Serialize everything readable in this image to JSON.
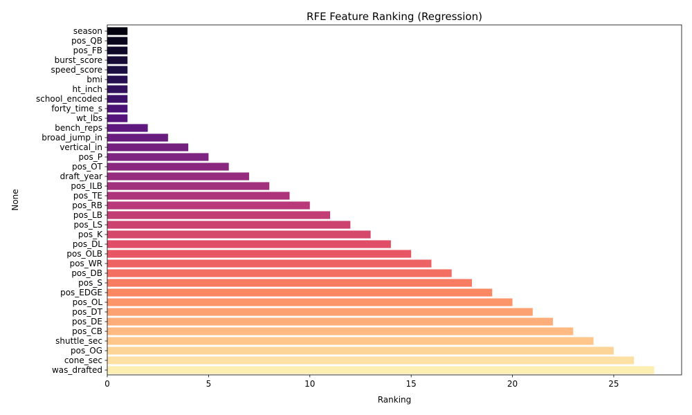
{
  "chart_data": {
    "type": "bar",
    "orientation": "horizontal",
    "title": "RFE Feature Ranking (Regression)",
    "xlabel": "Ranking",
    "ylabel": "None",
    "xlim": [
      0,
      28.35
    ],
    "xticks": [
      0,
      5,
      10,
      15,
      20,
      25
    ],
    "grid": false,
    "palette": "magma",
    "categories": [
      "season",
      "pos_QB",
      "pos_FB",
      "burst_score",
      "speed_score",
      "bmi",
      "ht_inch",
      "school_encoded",
      "forty_time_s",
      "wt_lbs",
      "bench_reps",
      "broad_jump_in",
      "vertical_in",
      "pos_P",
      "pos_OT",
      "draft_year",
      "pos_ILB",
      "pos_TE",
      "pos_RB",
      "pos_LB",
      "pos_LS",
      "pos_K",
      "pos_DL",
      "pos_OLB",
      "pos_WR",
      "pos_DB",
      "pos_S",
      "pos_EDGE",
      "pos_OL",
      "pos_DT",
      "pos_DE",
      "pos_CB",
      "shuttle_sec",
      "pos_OG",
      "cone_sec",
      "was_drafted"
    ],
    "values": [
      1,
      1,
      1,
      1,
      1,
      1,
      1,
      1,
      1,
      1,
      2,
      3,
      4,
      5,
      6,
      7,
      8,
      9,
      10,
      11,
      12,
      13,
      14,
      15,
      16,
      17,
      18,
      19,
      20,
      21,
      22,
      23,
      24,
      25,
      26,
      27
    ]
  }
}
